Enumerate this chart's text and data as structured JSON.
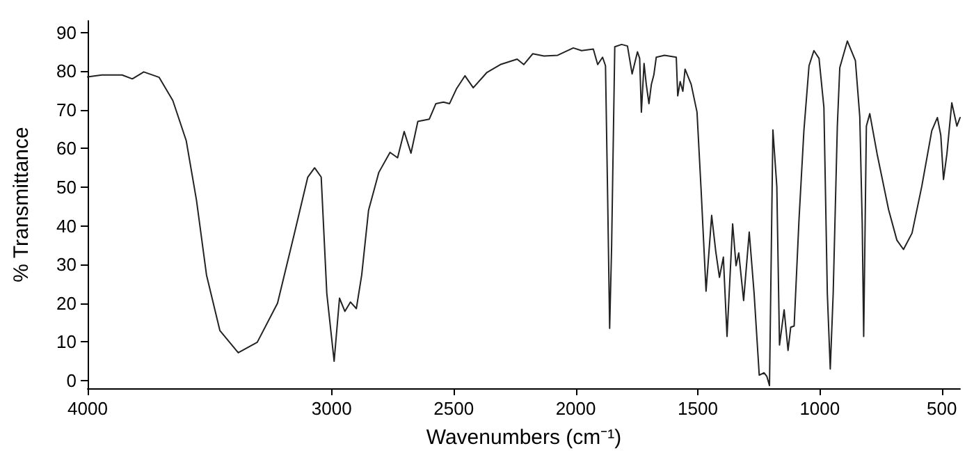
{
  "chart_data": {
    "type": "line",
    "xlabel": "Wavenumbers (cm⁻¹)",
    "ylabel": "% Transmittance",
    "xlim": [
      4000,
      425
    ],
    "ylim": [
      -2,
      93
    ],
    "xticks": [
      4000,
      3000,
      2500,
      2000,
      1500,
      1000,
      500
    ],
    "yticks": [
      0,
      10,
      20,
      30,
      40,
      50,
      60,
      70,
      80,
      90
    ],
    "grid": false,
    "marker": "none",
    "line_style": "solid",
    "series": [
      {
        "color": "#222222",
        "x": [
          4000,
          3942,
          3859,
          3817,
          3770,
          3707,
          3651,
          3596,
          3554,
          3513,
          3458,
          3383,
          3305,
          3222,
          3153,
          3098,
          3070,
          3043,
          3020,
          2990,
          2968,
          2946,
          2923,
          2899,
          2877,
          2849,
          2807,
          2761,
          2730,
          2703,
          2675,
          2647,
          2600,
          2573,
          2542,
          2517,
          2489,
          2454,
          2420,
          2365,
          2309,
          2240,
          2213,
          2176,
          2130,
          2074,
          2010,
          1976,
          1928,
          1910,
          1890,
          1878,
          1869,
          1861,
          1853,
          1840,
          1812,
          1788,
          1769,
          1747,
          1738,
          1731,
          1720,
          1711,
          1700,
          1690,
          1680,
          1670,
          1636,
          1588,
          1582,
          1572,
          1561,
          1552,
          1527,
          1503,
          1486,
          1466,
          1443,
          1426,
          1411,
          1395,
          1380,
          1357,
          1343,
          1332,
          1312,
          1289,
          1269,
          1248,
          1228,
          1217,
          1206,
          1192,
          1176,
          1165,
          1146,
          1130,
          1119,
          1105,
          1085,
          1065,
          1044,
          1024,
          1003,
          983,
          969,
          957,
          945,
          928,
          918,
          887,
          854,
          836,
          826,
          820,
          809,
          795,
          765,
          718,
          684,
          657,
          622,
          582,
          541,
          518,
          504,
          493,
          479,
          459,
          438,
          425
        ],
        "values": [
          78.5,
          79,
          79,
          78,
          79.8,
          78.4,
          72.4,
          62,
          46.6,
          27.3,
          12.9,
          7.2,
          9.9,
          20,
          38,
          52.6,
          55,
          52.6,
          22.5,
          5,
          21.3,
          17.9,
          20.3,
          18.6,
          27.3,
          44,
          53.8,
          59,
          57.6,
          64.4,
          58.8,
          67,
          67.6,
          71.6,
          72,
          71.6,
          75.4,
          78.8,
          75.7,
          79.6,
          81.7,
          83.1,
          81.7,
          84.5,
          83.9,
          84.1,
          86,
          85.3,
          85.7,
          81.7,
          83.6,
          81.4,
          46.6,
          13.5,
          34.5,
          86.3,
          86.9,
          86.5,
          79.3,
          85,
          83.3,
          69.4,
          82,
          76.6,
          71.6,
          76.6,
          79,
          83.6,
          84.1,
          83.6,
          73.6,
          77.3,
          74.8,
          80.5,
          76.6,
          69.4,
          49,
          23.1,
          42.7,
          33.3,
          26.7,
          31.9,
          11.4,
          40.5,
          29.7,
          33,
          20.7,
          38.4,
          22.5,
          1.4,
          2,
          1.1,
          -1.3,
          64.8,
          50.2,
          9.2,
          18.3,
          7.8,
          13.8,
          14.1,
          41.7,
          64.6,
          81.4,
          85.3,
          83.3,
          70.6,
          22.5,
          3,
          22.5,
          65.8,
          80.9,
          87.8,
          82.7,
          68.2,
          40.5,
          11.4,
          65.8,
          69,
          58.6,
          44.2,
          36.3,
          33.9,
          38.1,
          50.2,
          64.6,
          68,
          63.4,
          52,
          58.6,
          71.8,
          65.8,
          68
        ]
      }
    ]
  }
}
